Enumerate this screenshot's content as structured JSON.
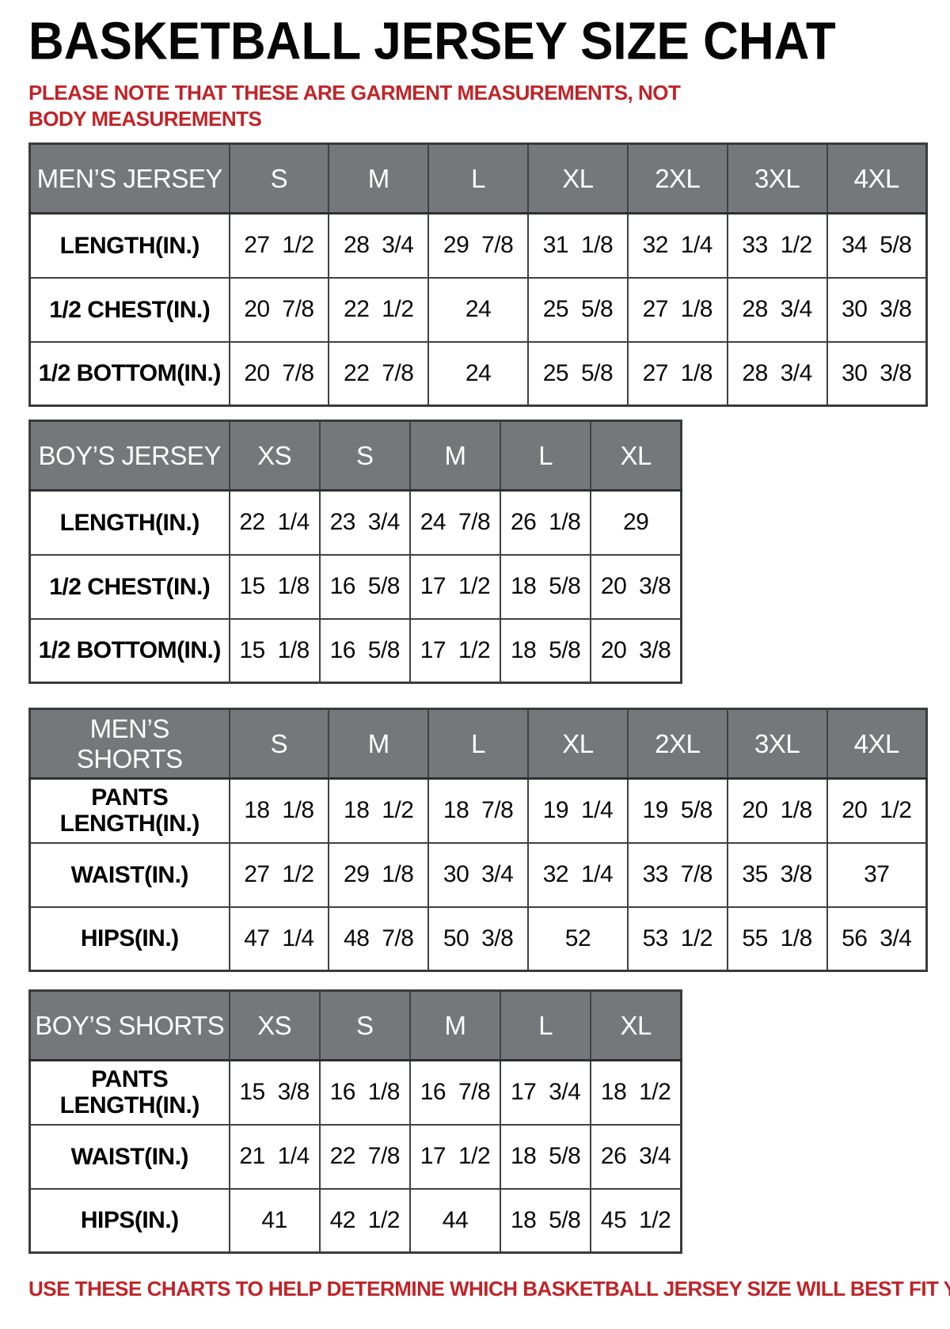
{
  "header": {
    "title": "BASKETBALL JERSEY SIZE CHAT",
    "note": "PLEASE NOTE THAT THESE ARE GARMENT MEASUREMENTS, NOT BODY MEASUREMENTS"
  },
  "footer": {
    "note": "USE THESE CHARTS TO HELP DETERMINE WHICH BASKETBALL JERSEY SIZE WILL BEST FIT YOU."
  },
  "colors": {
    "header_bg": "#76777a",
    "header_text": "#ffffff",
    "border": "#404144",
    "note_red": "#c02428",
    "title_black": "#060606"
  },
  "tables": [
    {
      "name": "mens-jersey",
      "header": [
        "MEN’S JERSEY",
        "S",
        "M",
        "L",
        "XL",
        "2XL",
        "3XL",
        "4XL"
      ],
      "rows": [
        [
          "LENGTH(IN.)",
          "27 1/2",
          "28 3/4",
          "29 7/8",
          "31 1/8",
          "32 1/4",
          "33 1/2",
          "34 5/8"
        ],
        [
          "1/2 CHEST(IN.)",
          "20 7/8",
          "22 1/2",
          "24",
          "25 5/8",
          "27 1/8",
          "28 3/4",
          "30 3/8"
        ],
        [
          "1/2 BOTTOM(IN.)",
          "20 7/8",
          "22 7/8",
          "24",
          "25 5/8",
          "27 1/8",
          "28 3/4",
          "30 3/8"
        ]
      ]
    },
    {
      "name": "boys-jersey",
      "header": [
        "BOY’S JERSEY",
        "XS",
        "S",
        "M",
        "L",
        "XL"
      ],
      "rows": [
        [
          "LENGTH(IN.)",
          "22 1/4",
          "23 3/4",
          "24 7/8",
          "26 1/8",
          "29"
        ],
        [
          "1/2 CHEST(IN.)",
          "15 1/8",
          "16 5/8",
          "17 1/2",
          "18 5/8",
          "20 3/8"
        ],
        [
          "1/2 BOTTOM(IN.)",
          "15 1/8",
          "16 5/8",
          "17 1/2",
          "18 5/8",
          "20 3/8"
        ]
      ]
    },
    {
      "name": "mens-shorts",
      "header": [
        "MEN’S SHORTS",
        "S",
        "M",
        "L",
        "XL",
        "2XL",
        "3XL",
        "4XL"
      ],
      "rows": [
        [
          "PANTS LENGTH(IN.)",
          "18 1/8",
          "18 1/2",
          "18 7/8",
          "19 1/4",
          "19 5/8",
          "20 1/8",
          "20 1/2"
        ],
        [
          "WAIST(IN.)",
          "27 1/2",
          "29 1/8",
          "30 3/4",
          "32 1/4",
          "33 7/8",
          "35 3/8",
          "37"
        ],
        [
          "HIPS(IN.)",
          "47 1/4",
          "48 7/8",
          "50 3/8",
          "52",
          "53 1/2",
          "55 1/8",
          "56 3/4"
        ]
      ]
    },
    {
      "name": "boys-shorts",
      "header": [
        "BOY’S SHORTS",
        "XS",
        "S",
        "M",
        "L",
        "XL"
      ],
      "rows": [
        [
          "PANTS LENGTH(IN.)",
          "15 3/8",
          "16 1/8",
          "16 7/8",
          "17 3/4",
          "18 1/2"
        ],
        [
          "WAIST(IN.)",
          "21 1/4",
          "22 7/8",
          "17 1/2",
          "18 5/8",
          "26 3/4"
        ],
        [
          "HIPS(IN.)",
          "41",
          "42 1/2",
          "44",
          "18 5/8",
          "45 1/2"
        ]
      ]
    }
  ]
}
